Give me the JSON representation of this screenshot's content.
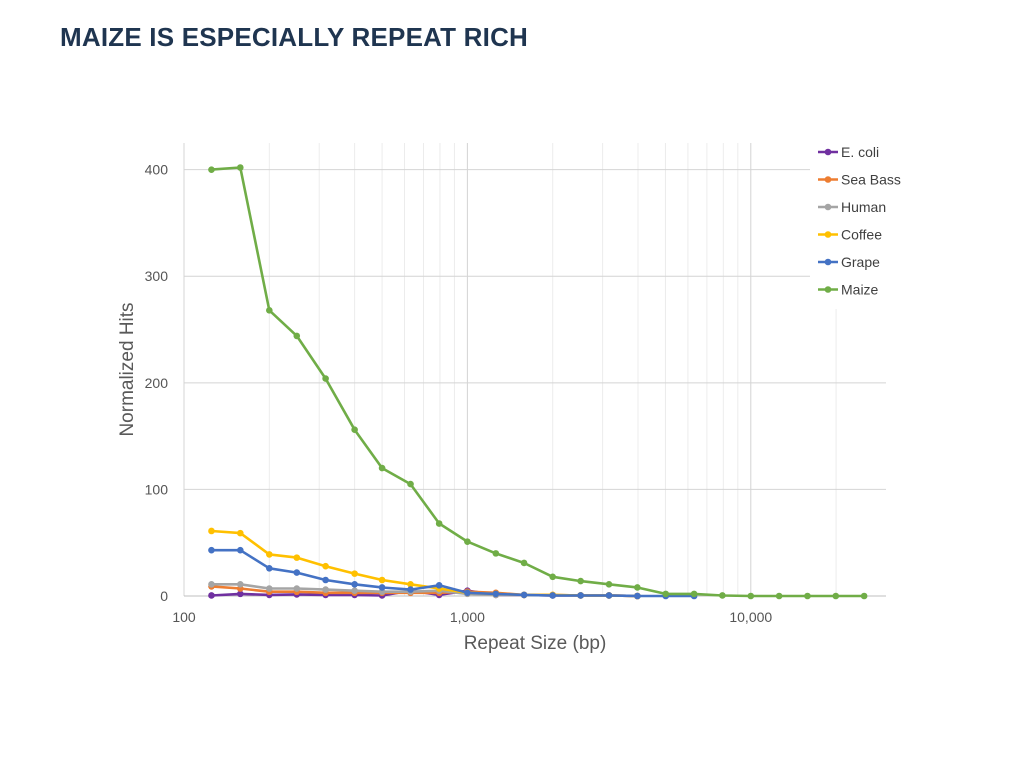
{
  "slide": {
    "title": "MAIZE IS ESPECIALLY REPEAT RICH"
  },
  "chart_data": {
    "type": "line",
    "xscale": "log",
    "xlabel": "Repeat Size (bp)",
    "ylabel": "Normalized Hits",
    "xlim": [
      100,
      30000
    ],
    "ylim": [
      0,
      425
    ],
    "xticks": [
      100,
      1000,
      10000
    ],
    "xtick_labels": [
      "100",
      "1,000",
      "10,000"
    ],
    "yticks": [
      0,
      100,
      200,
      300,
      400
    ],
    "ytick_labels": [
      "0",
      "100",
      "200",
      "300",
      "400"
    ],
    "grid": true,
    "legend_position": "top-right",
    "x": [
      125,
      158,
      200,
      250,
      316,
      400,
      500,
      630,
      795,
      1000,
      1260,
      1585,
      2000,
      2510,
      3160,
      3980,
      5010,
      6310,
      7940,
      10000,
      12590,
      15850,
      19950,
      25120
    ],
    "series": [
      {
        "name": "E. coli",
        "color": "#7030a0",
        "values": [
          0.5,
          2,
          1,
          1.5,
          1,
          1,
          0.5,
          5,
          1,
          5,
          1,
          1,
          0.5,
          0.5,
          0.5,
          0,
          null,
          null,
          null,
          null,
          null,
          null,
          null,
          null
        ]
      },
      {
        "name": "Sea Bass",
        "color": "#ed7d31",
        "values": [
          9,
          7,
          4,
          4,
          3,
          3,
          3,
          3,
          3,
          4,
          3,
          1,
          1,
          0.5,
          0.5,
          0,
          null,
          null,
          null,
          null,
          null,
          null,
          null,
          null
        ]
      },
      {
        "name": "Human",
        "color": "#a5a5a5",
        "values": [
          11,
          11,
          7,
          7,
          6,
          5,
          4,
          4,
          5,
          2,
          1,
          1,
          0.5,
          0.5,
          0.5,
          0,
          null,
          null,
          null,
          null,
          null,
          null,
          null,
          null
        ]
      },
      {
        "name": "Coffee",
        "color": "#ffc000",
        "values": [
          61,
          59,
          39,
          36,
          28,
          21,
          15,
          11,
          7,
          3,
          2,
          1,
          1,
          0.5,
          0.5,
          0,
          null,
          null,
          null,
          null,
          null,
          null,
          null,
          null
        ]
      },
      {
        "name": "Grape",
        "color": "#4472c4",
        "values": [
          43,
          43,
          26,
          22,
          15,
          11,
          8,
          6,
          10,
          3,
          2,
          1,
          0.5,
          0.5,
          0.5,
          0,
          0,
          0,
          null,
          null,
          null,
          null,
          null,
          null
        ]
      },
      {
        "name": "Maize",
        "color": "#70ad47",
        "values": [
          400,
          402,
          268,
          244,
          204,
          156,
          120,
          105,
          68,
          51,
          40,
          31,
          18,
          14,
          11,
          8,
          2,
          2,
          0.5,
          0,
          0,
          0,
          0,
          0
        ]
      }
    ]
  }
}
